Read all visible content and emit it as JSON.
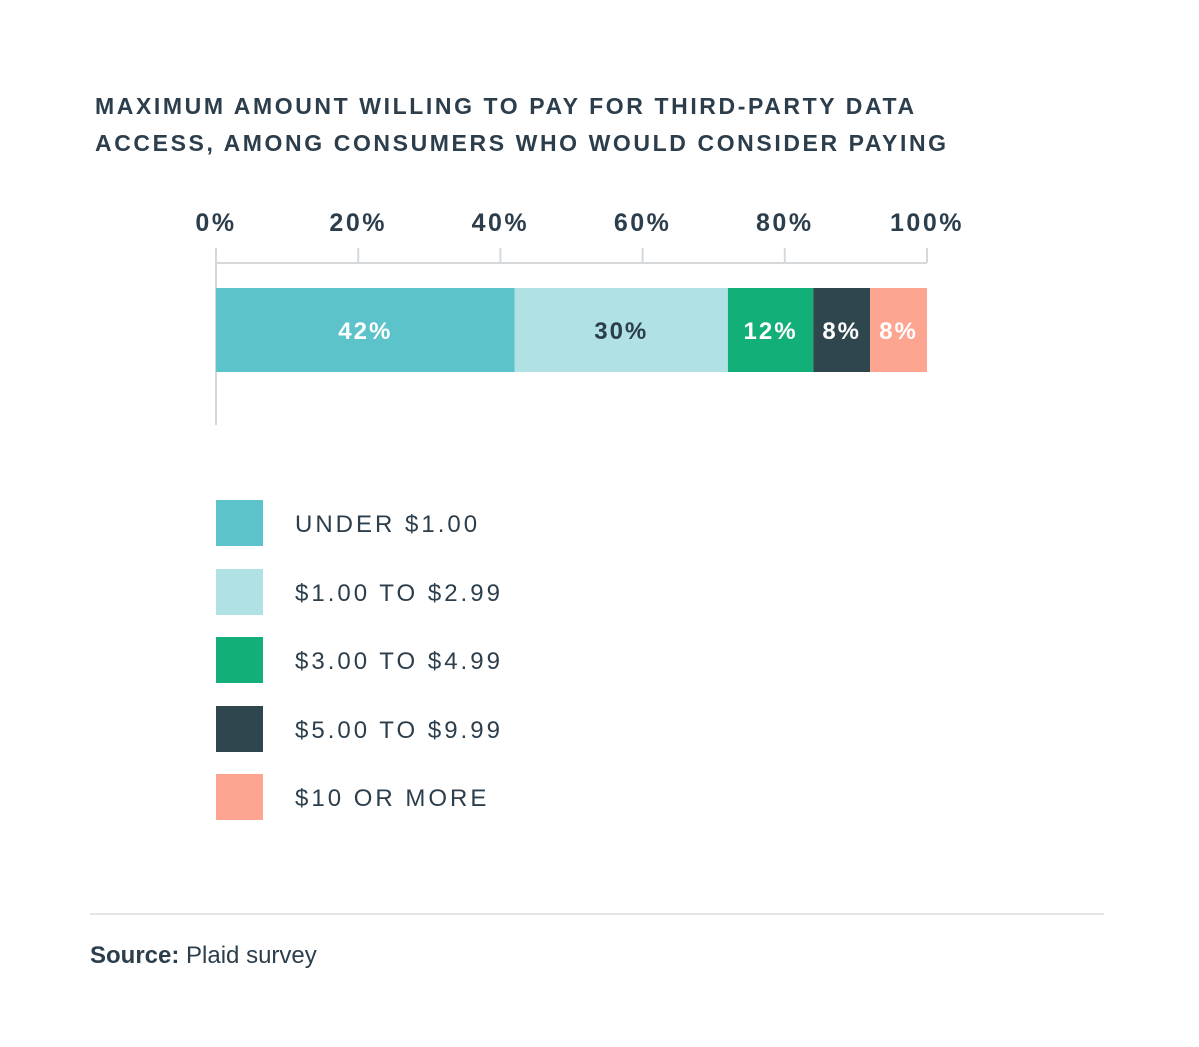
{
  "chart_data": {
    "type": "bar",
    "orientation": "horizontal-stacked",
    "title_lines": [
      "MAXIMUM AMOUNT WILLING TO PAY FOR THIRD-PARTY DATA",
      "ACCESS, AMONG CONSUMERS WHO WOULD CONSIDER PAYING"
    ],
    "x_ticks": [
      "0%",
      "20%",
      "40%",
      "60%",
      "80%",
      "100%"
    ],
    "x_tick_values": [
      0,
      20,
      40,
      60,
      80,
      100
    ],
    "xlim": [
      0,
      100
    ],
    "categories": [
      "UNDER $1.00",
      "$1.00 TO $2.99",
      "$3.00 TO $4.99",
      "$5.00 TO $9.99",
      "$10 OR MORE"
    ],
    "series": [
      {
        "name": "UNDER $1.00",
        "value": 42,
        "label": "42%",
        "color": "#5bc3c9",
        "text_color": "#ffffff"
      },
      {
        "name": "$1.00 TO $2.99",
        "value": 30,
        "label": "30%",
        "color": "#b0e1e5",
        "text_color": "#2c3e4c"
      },
      {
        "name": "$3.00 TO $4.99",
        "value": 12,
        "label": "12%",
        "color": "#12b078",
        "text_color": "#ffffff"
      },
      {
        "name": "$5.00 TO $9.99",
        "value": 8,
        "label": "8%",
        "color": "#2f464e",
        "text_color": "#ffffff"
      },
      {
        "name": "$10 OR MORE",
        "value": 8,
        "label": "8%",
        "color": "#fea592",
        "text_color": "#ffffff"
      }
    ],
    "legend_position": "bottom-left"
  },
  "source": {
    "label": "Source:",
    "text": "Plaid survey"
  }
}
